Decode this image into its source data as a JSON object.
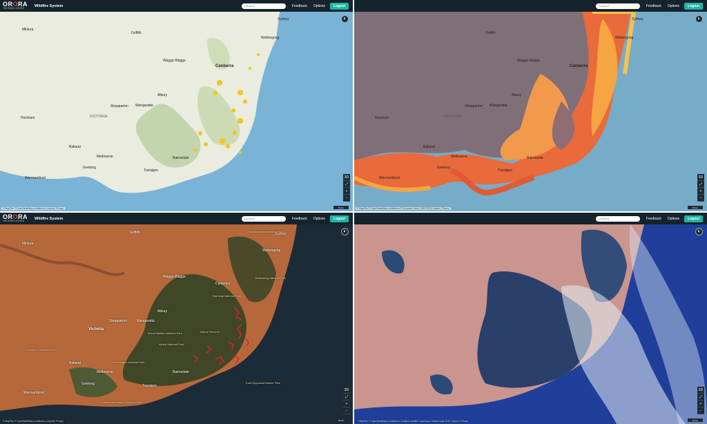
{
  "header": {
    "logo_main_a": "OR",
    "logo_main_o": "O",
    "logo_main_b": "RA",
    "logo_sub": "TECHNOLOGIES",
    "app_title": "Wildfire System",
    "search_placeholder": "Location",
    "feedback": "Feedback",
    "options": "Options",
    "logout": "Logout"
  },
  "controls": {
    "mode_3d": "3D",
    "fullscreen": "⤢",
    "zoom_in": "+",
    "zoom_out": "−",
    "scale": "50 km"
  },
  "panels": [
    {
      "attribution": "© MapTiler © OpenStreetMap contributors | Imprint | Privacy",
      "labels": {
        "mildura": "Mildura",
        "griffith": "Griffith",
        "sydney": "Sydney",
        "wollongong": "Wollongong",
        "wagga": "Wagga Wagga",
        "canberra": "Canberra",
        "albury": "Albury",
        "shepparton": "Shepparton",
        "wangaratta": "Wangaratta",
        "horsham": "Horsham",
        "victoria": "VICTORIA",
        "ballarat": "Ballarat",
        "melbourne": "Melbourne",
        "geelong": "Geelong",
        "traralgon": "Traralgon",
        "bairnsdale": "Bairnsdale",
        "warrnambool": "Warrnambool"
      }
    },
    {
      "attribution": "© MapTiler © OpenStreetMap contributors © European Union, 2000-2020 | Imprint | Privacy",
      "labels": {
        "griffith": "Griffith",
        "sydney": "Sydney",
        "wollongong": "Wollongong",
        "wagga": "Wagga Wagga",
        "canberra": "Canberra",
        "albury": "Albury",
        "shepparton": "Shepparton",
        "wangaratta": "Wangaratta",
        "horsham": "Horsham",
        "victoria": "VICTORIA",
        "ballarat": "Ballarat",
        "melbourne": "Melbourne",
        "geelong": "Geelong",
        "traralgon": "Traralgon",
        "bairnsdale": "Bairnsdale",
        "warrnambool": "Warrnambool"
      }
    },
    {
      "attribution": "© MapTiler © OpenStreetMap contributors | Imprint | Privacy",
      "labels": {
        "mildura": "Mildura",
        "griffith": "Griffith",
        "sydney": "Sydney",
        "wollongong": "Wollongong",
        "blue_mountains": "Blue Mountains National Park",
        "wagga": "Wagga Wagga",
        "canberra": "Canberra",
        "namadgi": "Namadgi National Park",
        "budawang": "Budawang National Park",
        "albury": "Albury",
        "shepparton": "Shepparton",
        "wangaratta": "Wangaratta",
        "victoria": "Victoria",
        "mount_buffalo": "Mount Buffalo National Park",
        "alpine": "Alpine National Park",
        "nature_reserve": "Nature Reserve",
        "ballarat": "Ballarat",
        "grampians": "Grampians National Park",
        "yarra": "Yarra Ranges National Park",
        "melbourne": "Melbourne",
        "bairnsdale": "Bairnsdale",
        "geelong": "Geelong",
        "traralgon": "Traralgon",
        "warrnambool": "Warrnambool",
        "bunurong": "Bunurong Marine National Park",
        "east_gippsland": "East Gippsland Marine Park"
      }
    },
    {
      "attribution": "© MapTiler © OpenStreetMap contributors Contains modified Copernicus Sentinel data 2019 | Imprint | Privacy",
      "labels": {}
    }
  ]
}
